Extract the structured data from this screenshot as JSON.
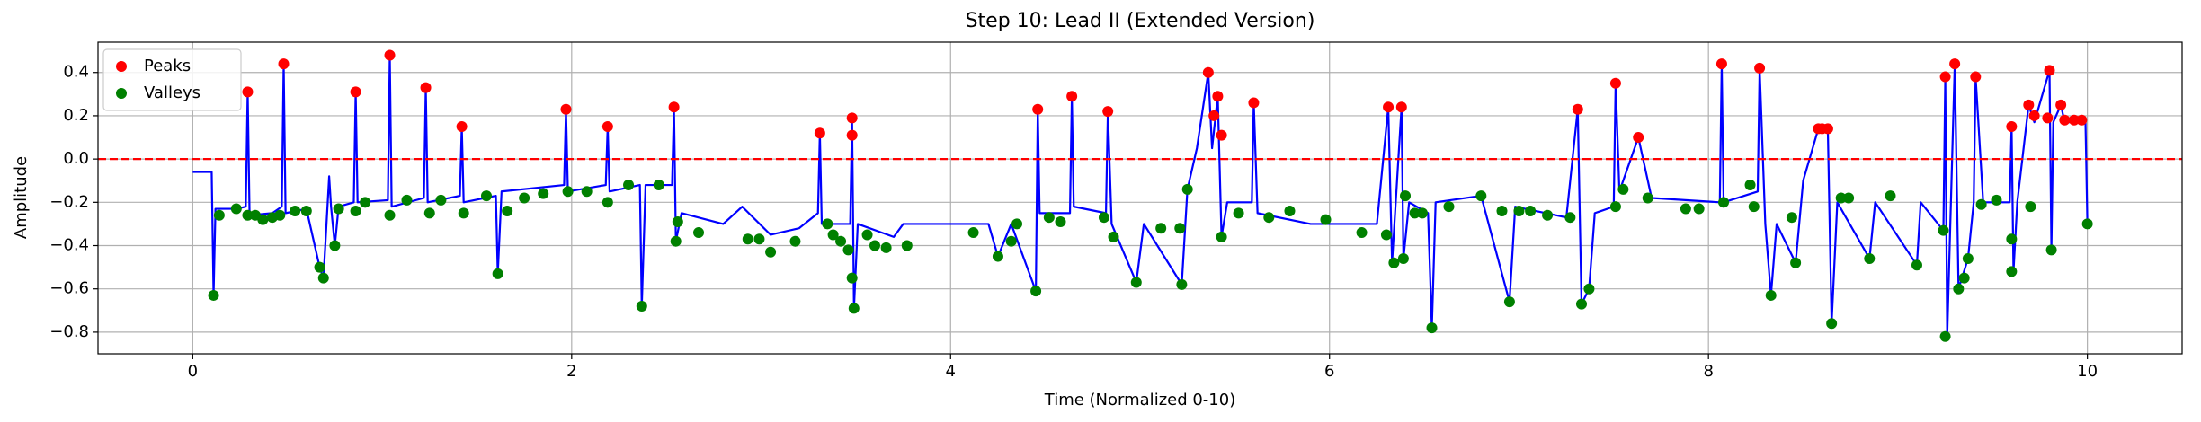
{
  "chart_data": {
    "type": "line",
    "title": "Step 10: Lead II (Extended Version)",
    "x_label": "Time (Normalized 0-10)",
    "y_label": "Amplitude",
    "xlim": [
      -0.5,
      10.5
    ],
    "ylim": [
      -0.9,
      0.54
    ],
    "xticks": [
      0,
      2,
      4,
      6,
      8,
      10
    ],
    "yticks": [
      {
        "value": -0.8,
        "label": "−0.8"
      },
      {
        "value": -0.6,
        "label": "−0.6"
      },
      {
        "value": -0.4,
        "label": "−0.4"
      },
      {
        "value": -0.2,
        "label": "−0.2"
      },
      {
        "value": 0.0,
        "label": "0.0"
      },
      0.2,
      0.4
    ],
    "grid": true,
    "legend": "upper left",
    "reference_line": {
      "y": 0,
      "color": "#ff0000",
      "style": "dashed"
    },
    "series": [
      {
        "type": "line",
        "color": "#0000ff",
        "x": [
          0,
          0.1,
          0.11,
          0.12,
          0.23,
          0.28,
          0.29,
          0.3,
          0.42,
          0.47,
          0.48,
          0.49,
          0.6,
          0.67,
          0.69,
          0.72,
          0.73,
          0.75,
          0.77,
          0.85,
          0.86,
          0.87,
          1.03,
          1.04,
          1.05,
          1.22,
          1.23,
          1.24,
          1.41,
          1.42,
          1.43,
          1.6,
          1.61,
          1.63,
          1.96,
          1.97,
          1.98,
          2.18,
          2.19,
          2.2,
          2.36,
          2.37,
          2.39,
          2.53,
          2.54,
          2.55,
          2.58,
          2.8,
          2.9,
          3.05,
          3.2,
          3.3,
          3.31,
          3.32,
          3.47,
          3.48,
          3.49,
          3.51,
          3.7,
          3.75,
          4.2,
          4.25,
          4.32,
          4.45,
          4.46,
          4.47,
          4.63,
          4.64,
          4.65,
          4.82,
          4.83,
          4.85,
          4.98,
          5.02,
          5.22,
          5.25,
          5.3,
          5.36,
          5.38,
          5.41,
          5.43,
          5.46,
          5.59,
          5.6,
          5.62,
          5.9,
          6.25,
          6.31,
          6.33,
          6.38,
          6.39,
          6.42,
          6.52,
          6.54,
          6.56,
          6.8,
          6.95,
          6.98,
          7.25,
          7.31,
          7.33,
          7.37,
          7.4,
          7.5,
          7.51,
          7.53,
          7.63,
          7.7,
          8.06,
          8.07,
          8.08,
          8.26,
          8.27,
          8.3,
          8.33,
          8.36,
          8.46,
          8.5,
          8.58,
          8.63,
          8.65,
          8.68,
          8.85,
          8.88,
          9.1,
          9.12,
          9.24,
          9.25,
          9.26,
          9.3,
          9.32,
          9.37,
          9.4,
          9.41,
          9.45,
          9.59,
          9.6,
          9.61,
          9.63,
          9.69,
          9.72,
          9.8,
          9.81,
          9.82,
          9.86,
          9.88,
          9.99,
          10.0
        ],
        "values": [
          -0.06,
          -0.06,
          -0.63,
          -0.23,
          -0.23,
          -0.22,
          0.31,
          -0.26,
          -0.25,
          -0.22,
          0.44,
          -0.25,
          -0.23,
          -0.5,
          -0.55,
          -0.08,
          -0.22,
          -0.4,
          -0.22,
          -0.2,
          0.31,
          -0.2,
          -0.19,
          0.48,
          -0.22,
          -0.18,
          0.33,
          -0.2,
          -0.17,
          0.15,
          -0.2,
          -0.17,
          -0.53,
          -0.15,
          -0.12,
          0.23,
          -0.15,
          -0.12,
          0.15,
          -0.15,
          -0.12,
          -0.68,
          -0.12,
          -0.12,
          0.24,
          -0.38,
          -0.25,
          -0.3,
          -0.22,
          -0.35,
          -0.32,
          -0.25,
          0.12,
          -0.3,
          -0.3,
          0.19,
          -0.69,
          -0.3,
          -0.36,
          -0.3,
          -0.3,
          -0.45,
          -0.3,
          -0.61,
          0.23,
          -0.25,
          -0.25,
          0.29,
          -0.22,
          -0.25,
          0.22,
          -0.3,
          -0.57,
          -0.3,
          -0.58,
          -0.14,
          0.05,
          0.4,
          0.05,
          0.29,
          -0.36,
          -0.2,
          -0.2,
          0.26,
          -0.25,
          -0.3,
          -0.3,
          0.24,
          -0.48,
          0.24,
          -0.46,
          -0.2,
          -0.25,
          -0.78,
          -0.2,
          -0.17,
          -0.66,
          -0.22,
          -0.27,
          0.23,
          -0.67,
          -0.6,
          -0.25,
          -0.22,
          0.35,
          -0.15,
          0.1,
          -0.18,
          -0.2,
          0.44,
          -0.2,
          -0.15,
          0.42,
          -0.3,
          -0.63,
          -0.3,
          -0.48,
          -0.1,
          0.14,
          0.14,
          -0.76,
          -0.2,
          -0.46,
          -0.2,
          -0.49,
          -0.2,
          -0.33,
          0.38,
          -0.82,
          0.44,
          -0.6,
          -0.46,
          -0.2,
          0.38,
          -0.2,
          -0.2,
          0.15,
          -0.52,
          -0.2,
          0.25,
          0.17,
          0.41,
          -0.42,
          0.17,
          0.25,
          0.17,
          0.17,
          -0.3
        ]
      },
      {
        "type": "scatter",
        "name": "Peaks",
        "color": "#ff0000",
        "x": [
          0.29,
          0.48,
          0.86,
          1.04,
          1.23,
          1.42,
          1.97,
          2.19,
          2.54,
          3.31,
          3.48,
          3.48,
          4.46,
          4.64,
          4.83,
          5.36,
          5.39,
          5.41,
          5.43,
          5.6,
          6.31,
          6.38,
          7.31,
          7.51,
          7.63,
          8.07,
          8.27,
          8.58,
          8.6,
          8.63,
          9.25,
          9.3,
          9.41,
          9.6,
          9.69,
          9.72,
          9.79,
          9.8,
          9.86,
          9.88,
          9.93,
          9.97
        ],
        "values": [
          0.31,
          0.44,
          0.31,
          0.48,
          0.33,
          0.15,
          0.23,
          0.15,
          0.24,
          0.12,
          0.11,
          0.19,
          0.23,
          0.29,
          0.22,
          0.4,
          0.2,
          0.29,
          0.11,
          0.26,
          0.24,
          0.24,
          0.23,
          0.35,
          0.1,
          0.44,
          0.42,
          0.14,
          0.14,
          0.14,
          0.38,
          0.44,
          0.38,
          0.15,
          0.25,
          0.2,
          0.19,
          0.41,
          0.25,
          0.18,
          0.18,
          0.18
        ]
      },
      {
        "type": "scatter",
        "name": "Valleys",
        "color": "#008000",
        "x": [
          0.11,
          0.14,
          0.23,
          0.29,
          0.33,
          0.37,
          0.42,
          0.46,
          0.54,
          0.6,
          0.67,
          0.69,
          0.75,
          0.77,
          0.86,
          0.91,
          1.04,
          1.13,
          1.25,
          1.31,
          1.43,
          1.55,
          1.61,
          1.66,
          1.75,
          1.85,
          1.98,
          2.08,
          2.19,
          2.3,
          2.37,
          2.46,
          2.55,
          2.56,
          2.67,
          2.93,
          2.99,
          3.05,
          3.18,
          3.35,
          3.38,
          3.42,
          3.46,
          3.48,
          3.49,
          3.56,
          3.6,
          3.66,
          3.77,
          4.12,
          4.25,
          4.32,
          4.35,
          4.45,
          4.52,
          4.58,
          4.81,
          4.86,
          4.98,
          5.11,
          5.21,
          5.22,
          5.25,
          5.43,
          5.52,
          5.68,
          5.79,
          5.98,
          6.17,
          6.3,
          6.34,
          6.39,
          6.4,
          6.45,
          6.49,
          6.54,
          6.63,
          6.8,
          6.91,
          6.95,
          7.0,
          7.06,
          7.15,
          7.27,
          7.33,
          7.37,
          7.51,
          7.55,
          7.68,
          7.88,
          7.95,
          8.08,
          8.22,
          8.24,
          8.33,
          8.44,
          8.46,
          8.65,
          8.7,
          8.74,
          8.85,
          8.96,
          9.1,
          9.24,
          9.25,
          9.32,
          9.35,
          9.37,
          9.44,
          9.52,
          9.6,
          9.6,
          9.7,
          9.81,
          10.0
        ],
        "values": [
          -0.63,
          -0.26,
          -0.23,
          -0.26,
          -0.26,
          -0.28,
          -0.27,
          -0.26,
          -0.24,
          -0.24,
          -0.5,
          -0.55,
          -0.4,
          -0.23,
          -0.24,
          -0.2,
          -0.26,
          -0.19,
          -0.25,
          -0.19,
          -0.25,
          -0.17,
          -0.53,
          -0.24,
          -0.18,
          -0.16,
          -0.15,
          -0.15,
          -0.2,
          -0.12,
          -0.68,
          -0.12,
          -0.38,
          -0.29,
          -0.34,
          -0.37,
          -0.37,
          -0.43,
          -0.38,
          -0.3,
          -0.35,
          -0.38,
          -0.42,
          -0.55,
          -0.69,
          -0.35,
          -0.4,
          -0.41,
          -0.4,
          -0.34,
          -0.45,
          -0.38,
          -0.3,
          -0.61,
          -0.27,
          -0.29,
          -0.27,
          -0.36,
          -0.57,
          -0.32,
          -0.32,
          -0.58,
          -0.14,
          -0.36,
          -0.25,
          -0.27,
          -0.24,
          -0.28,
          -0.34,
          -0.35,
          -0.48,
          -0.46,
          -0.17,
          -0.25,
          -0.25,
          -0.78,
          -0.22,
          -0.17,
          -0.24,
          -0.66,
          -0.24,
          -0.24,
          -0.26,
          -0.27,
          -0.67,
          -0.6,
          -0.22,
          -0.14,
          -0.18,
          -0.23,
          -0.23,
          -0.2,
          -0.12,
          -0.22,
          -0.63,
          -0.27,
          -0.48,
          -0.76,
          -0.18,
          -0.18,
          -0.46,
          -0.17,
          -0.49,
          -0.33,
          -0.82,
          -0.6,
          -0.55,
          -0.46,
          -0.21,
          -0.19,
          -0.52,
          -0.37,
          -0.22,
          -0.42,
          -0.3
        ]
      }
    ]
  }
}
